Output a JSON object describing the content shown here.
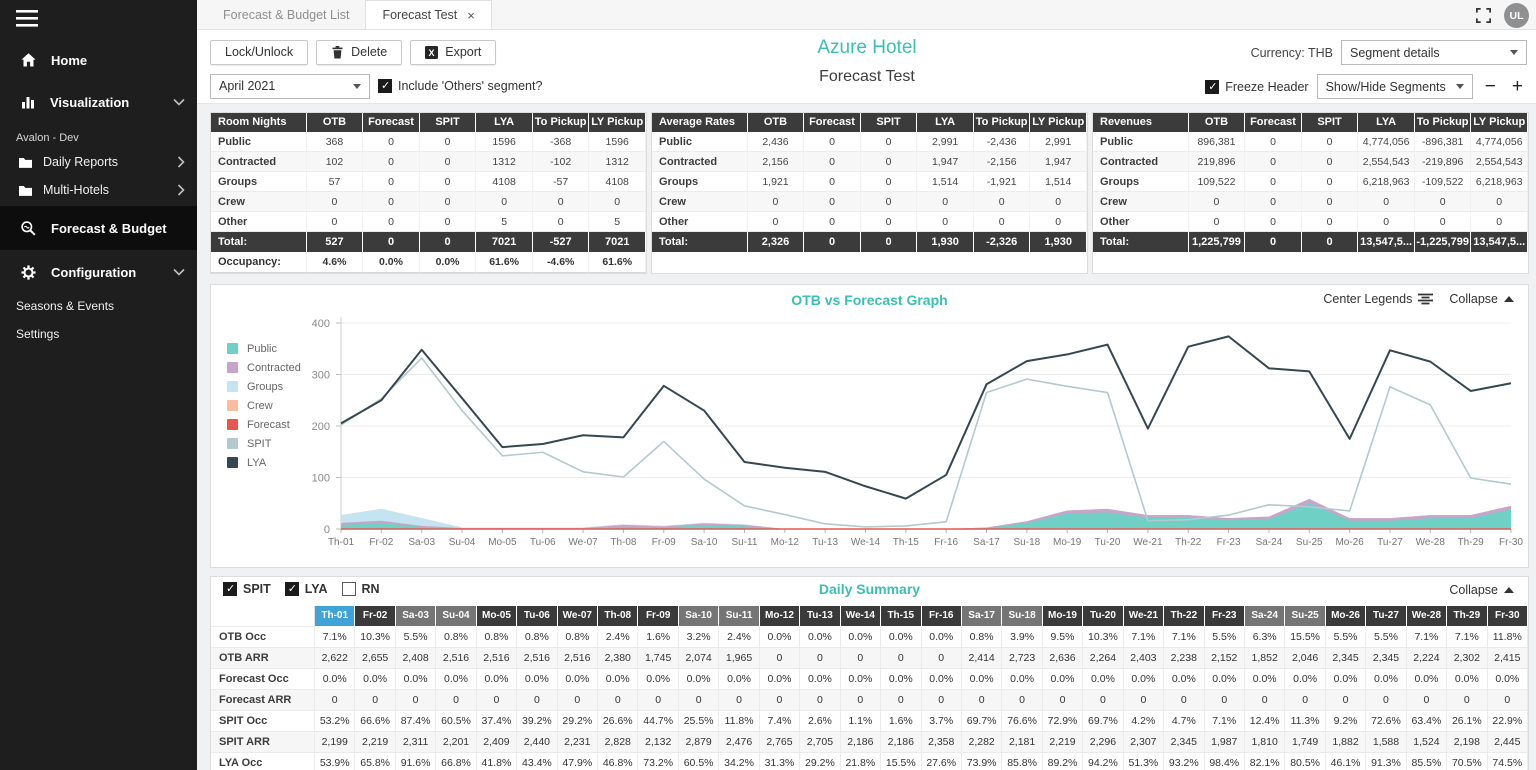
{
  "sidebar": {
    "items": [
      {
        "id": "home",
        "label": "Home",
        "icon": "home-icon",
        "type": "top"
      },
      {
        "id": "visualization",
        "label": "Visualization",
        "icon": "chart-icon",
        "type": "top",
        "chevron": "down"
      },
      {
        "id": "avalon-dev",
        "label": "Avalon - Dev",
        "type": "group-label"
      },
      {
        "id": "daily-reports",
        "label": "Daily Reports",
        "icon": "folder-icon",
        "type": "sub",
        "chevron": "right"
      },
      {
        "id": "multi-hotels",
        "label": "Multi-Hotels",
        "icon": "folder-icon",
        "type": "sub",
        "chevron": "right"
      },
      {
        "id": "forecast-budget",
        "label": "Forecast & Budget",
        "icon": "search-icon",
        "type": "top",
        "active": true
      },
      {
        "id": "configuration",
        "label": "Configuration",
        "icon": "gear-icon",
        "type": "top",
        "chevron": "down"
      },
      {
        "id": "seasons-events",
        "label": "Seasons & Events",
        "type": "link"
      },
      {
        "id": "settings",
        "label": "Settings",
        "type": "link"
      }
    ]
  },
  "tabs": {
    "items": [
      {
        "label": "Forecast & Budget List",
        "active": false
      },
      {
        "label": "Forecast Test",
        "active": true,
        "close": "×"
      }
    ],
    "avatar": "UL"
  },
  "toolbar": {
    "buttons": [
      {
        "id": "lock-unlock",
        "label": "Lock/Unlock"
      },
      {
        "id": "delete",
        "label": "Delete",
        "icon": "trash-icon"
      },
      {
        "id": "export",
        "label": "Export",
        "icon": "excel-icon"
      }
    ],
    "month": "April 2021",
    "include_others": "Include 'Others' segment?",
    "currency": "Currency: THB",
    "segment_details": "Segment details",
    "freeze_header": "Freeze Header",
    "show_hide_segments": "Show/Hide Segments",
    "zoom_out": "−",
    "zoom_in": "+"
  },
  "header": {
    "hotel": "Azure Hotel",
    "title": "Forecast Test"
  },
  "tables": [
    {
      "title": "Room Nights",
      "columns": [
        "OTB",
        "Forecast",
        "SPIT",
        "LYA",
        "To Pickup",
        "LY Pickup"
      ],
      "rows": [
        {
          "label": "Public",
          "values": [
            "368",
            "0",
            "0",
            "1596",
            "-368",
            "1596"
          ]
        },
        {
          "label": "Contracted",
          "values": [
            "102",
            "0",
            "0",
            "1312",
            "-102",
            "1312"
          ]
        },
        {
          "label": "Groups",
          "values": [
            "57",
            "0",
            "0",
            "4108",
            "-57",
            "4108"
          ]
        },
        {
          "label": "Crew",
          "values": [
            "0",
            "0",
            "0",
            "0",
            "0",
            "0"
          ]
        },
        {
          "label": "Other",
          "values": [
            "0",
            "0",
            "0",
            "5",
            "0",
            "5"
          ]
        }
      ],
      "total": {
        "label": "Total:",
        "values": [
          "527",
          "0",
          "0",
          "7021",
          "-527",
          "7021"
        ]
      },
      "footer": {
        "label": "Occupancy:",
        "values": [
          "4.6%",
          "0.0%",
          "0.0%",
          "61.6%",
          "-4.6%",
          "61.6%"
        ]
      }
    },
    {
      "title": "Average Rates",
      "columns": [
        "OTB",
        "Forecast",
        "SPIT",
        "LYA",
        "To Pickup",
        "LY Pickup"
      ],
      "rows": [
        {
          "label": "Public",
          "values": [
            "2,436",
            "0",
            "0",
            "2,991",
            "-2,436",
            "2,991"
          ]
        },
        {
          "label": "Contracted",
          "values": [
            "2,156",
            "0",
            "0",
            "1,947",
            "-2,156",
            "1,947"
          ]
        },
        {
          "label": "Groups",
          "values": [
            "1,921",
            "0",
            "0",
            "1,514",
            "-1,921",
            "1,514"
          ]
        },
        {
          "label": "Crew",
          "values": [
            "0",
            "0",
            "0",
            "0",
            "0",
            "0"
          ]
        },
        {
          "label": "Other",
          "values": [
            "0",
            "0",
            "0",
            "0",
            "0",
            "0"
          ]
        }
      ],
      "total": {
        "label": "Total:",
        "values": [
          "2,326",
          "0",
          "0",
          "1,930",
          "-2,326",
          "1,930"
        ]
      }
    },
    {
      "title": "Revenues",
      "columns": [
        "OTB",
        "Forecast",
        "SPIT",
        "LYA",
        "To Pickup",
        "LY Pickup"
      ],
      "rows": [
        {
          "label": "Public",
          "values": [
            "896,381",
            "0",
            "0",
            "4,774,056",
            "-896,381",
            "4,774,056"
          ]
        },
        {
          "label": "Contracted",
          "values": [
            "219,896",
            "0",
            "0",
            "2,554,543",
            "-219,896",
            "2,554,543"
          ]
        },
        {
          "label": "Groups",
          "values": [
            "109,522",
            "0",
            "0",
            "6,218,963",
            "-109,522",
            "6,218,963"
          ]
        },
        {
          "label": "Crew",
          "values": [
            "0",
            "0",
            "0",
            "0",
            "0",
            "0"
          ]
        },
        {
          "label": "Other",
          "values": [
            "0",
            "0",
            "0",
            "0",
            "0",
            "0"
          ]
        }
      ],
      "total": {
        "label": "Total:",
        "values": [
          "1,225,799",
          "0",
          "0",
          "13,547,5...",
          "-1,225,799",
          "13,547,5..."
        ]
      }
    }
  ],
  "chart": {
    "title": "OTB vs Forecast Graph",
    "center_legends_label": "Center Legends",
    "collapse_label": "Collapse"
  },
  "chart_data": {
    "type": "line",
    "note": "Public/Contracted/Groups/Crew are stacked areas; Forecast/SPIT/LYA are lines",
    "x": [
      "Th-01",
      "Fr-02",
      "Sa-03",
      "Su-04",
      "Mo-05",
      "Tu-06",
      "We-07",
      "Th-08",
      "Fr-09",
      "Sa-10",
      "Su-11",
      "Mo-12",
      "Tu-13",
      "We-14",
      "Th-15",
      "Fr-16",
      "Sa-17",
      "Su-18",
      "Mo-19",
      "Tu-20",
      "We-21",
      "Th-22",
      "Fr-23",
      "Sa-24",
      "Su-25",
      "Mo-26",
      "Tu-27",
      "We-28",
      "Th-29",
      "Fr-30"
    ],
    "ylim": [
      0,
      400
    ],
    "y_ticks": [
      400,
      300,
      200,
      100,
      0
    ],
    "legend_position": "left",
    "series": [
      {
        "name": "Public",
        "kind": "area",
        "color": "#6fd1c6",
        "values": [
          8,
          12,
          4,
          1,
          1,
          1,
          1,
          4,
          3,
          8,
          5,
          0,
          0,
          0,
          0,
          0,
          2,
          12,
          30,
          32,
          22,
          22,
          17,
          19,
          50,
          16,
          16,
          21,
          21,
          38
        ]
      },
      {
        "name": "Contracted",
        "kind": "area",
        "color": "#c9a4ca",
        "values": [
          4,
          4,
          2,
          1,
          1,
          1,
          1,
          4,
          2,
          3,
          3,
          0,
          0,
          0,
          0,
          0,
          1,
          3,
          6,
          7,
          5,
          5,
          4,
          5,
          8,
          5,
          5,
          6,
          6,
          7
        ]
      },
      {
        "name": "Groups",
        "kind": "area",
        "color": "#c3e4f0",
        "values": [
          15,
          23,
          15,
          1,
          1,
          1,
          1,
          1,
          1,
          1,
          1,
          0,
          0,
          0,
          0,
          0,
          0,
          0,
          0,
          0,
          0,
          0,
          0,
          0,
          1,
          0,
          0,
          0,
          0,
          0
        ]
      },
      {
        "name": "Crew",
        "kind": "area",
        "color": "#f9bd9e",
        "values": [
          0,
          0,
          0,
          0,
          0,
          0,
          0,
          0,
          0,
          0,
          0,
          0,
          0,
          0,
          0,
          0,
          0,
          0,
          0,
          0,
          0,
          0,
          0,
          0,
          0,
          0,
          0,
          0,
          0,
          0
        ]
      },
      {
        "name": "Forecast",
        "kind": "line",
        "color": "#e8564e",
        "values": [
          0,
          0,
          0,
          0,
          0,
          0,
          0,
          0,
          0,
          0,
          0,
          0,
          0,
          0,
          0,
          0,
          0,
          0,
          0,
          0,
          0,
          0,
          0,
          0,
          0,
          0,
          0,
          0,
          0,
          0
        ]
      },
      {
        "name": "SPIT",
        "kind": "line",
        "color": "#b4c9cb",
        "values": [
          202,
          253,
          332,
          230,
          142,
          149,
          111,
          101,
          170,
          97,
          45,
          28,
          10,
          4,
          6,
          14,
          265,
          291,
          277,
          265,
          16,
          18,
          27,
          47,
          43,
          35,
          276,
          241,
          99,
          87
        ]
      },
      {
        "name": "LYA",
        "kind": "line",
        "color": "#36474f",
        "values": [
          205,
          250,
          348,
          254,
          159,
          165,
          182,
          178,
          278,
          230,
          130,
          119,
          111,
          83,
          59,
          105,
          281,
          326,
          339,
          358,
          195,
          354,
          374,
          312,
          306,
          175,
          347,
          325,
          268,
          283
        ]
      }
    ]
  },
  "daily": {
    "checkboxes": [
      {
        "label": "SPIT",
        "checked": true
      },
      {
        "label": "LYA",
        "checked": true
      },
      {
        "label": "RN",
        "checked": false
      }
    ],
    "title": "Daily Summary",
    "collapse_label": "Collapse",
    "days": [
      {
        "label": "Th-01",
        "kind": "selected"
      },
      {
        "label": "Fr-02",
        "kind": "weekday"
      },
      {
        "label": "Sa-03",
        "kind": "weekend"
      },
      {
        "label": "Su-04",
        "kind": "weekend"
      },
      {
        "label": "Mo-05",
        "kind": "weekday"
      },
      {
        "label": "Tu-06",
        "kind": "weekday"
      },
      {
        "label": "We-07",
        "kind": "weekday"
      },
      {
        "label": "Th-08",
        "kind": "weekday"
      },
      {
        "label": "Fr-09",
        "kind": "weekday"
      },
      {
        "label": "Sa-10",
        "kind": "weekend"
      },
      {
        "label": "Su-11",
        "kind": "weekend"
      },
      {
        "label": "Mo-12",
        "kind": "weekday"
      },
      {
        "label": "Tu-13",
        "kind": "weekday"
      },
      {
        "label": "We-14",
        "kind": "weekday"
      },
      {
        "label": "Th-15",
        "kind": "weekday"
      },
      {
        "label": "Fr-16",
        "kind": "weekday"
      },
      {
        "label": "Sa-17",
        "kind": "weekend"
      },
      {
        "label": "Su-18",
        "kind": "weekend"
      },
      {
        "label": "Mo-19",
        "kind": "weekday"
      },
      {
        "label": "Tu-20",
        "kind": "weekday"
      },
      {
        "label": "We-21",
        "kind": "weekday"
      },
      {
        "label": "Th-22",
        "kind": "weekday"
      },
      {
        "label": "Fr-23",
        "kind": "weekday"
      },
      {
        "label": "Sa-24",
        "kind": "weekend"
      },
      {
        "label": "Su-25",
        "kind": "weekend"
      },
      {
        "label": "Mo-26",
        "kind": "weekday"
      },
      {
        "label": "Tu-27",
        "kind": "weekday"
      },
      {
        "label": "We-28",
        "kind": "weekday"
      },
      {
        "label": "Th-29",
        "kind": "weekday"
      },
      {
        "label": "Fr-30",
        "kind": "weekday"
      }
    ],
    "rows": [
      {
        "label": "OTB Occ",
        "values": [
          "7.1%",
          "10.3%",
          "5.5%",
          "0.8%",
          "0.8%",
          "0.8%",
          "0.8%",
          "2.4%",
          "1.6%",
          "3.2%",
          "2.4%",
          "0.0%",
          "0.0%",
          "0.0%",
          "0.0%",
          "0.0%",
          "0.8%",
          "3.9%",
          "9.5%",
          "10.3%",
          "7.1%",
          "7.1%",
          "5.5%",
          "6.3%",
          "15.5%",
          "5.5%",
          "5.5%",
          "7.1%",
          "7.1%",
          "11.8%"
        ]
      },
      {
        "label": "OTB ARR",
        "values": [
          "2,622",
          "2,655",
          "2,408",
          "2,516",
          "2,516",
          "2,516",
          "2,516",
          "2,380",
          "1,745",
          "2,074",
          "1,965",
          "0",
          "0",
          "0",
          "0",
          "0",
          "2,414",
          "2,723",
          "2,636",
          "2,264",
          "2,403",
          "2,238",
          "2,152",
          "1,852",
          "2,046",
          "2,345",
          "2,345",
          "2,224",
          "2,302",
          "2,415"
        ]
      },
      {
        "label": "Forecast Occ",
        "values": [
          "0.0%",
          "0.0%",
          "0.0%",
          "0.0%",
          "0.0%",
          "0.0%",
          "0.0%",
          "0.0%",
          "0.0%",
          "0.0%",
          "0.0%",
          "0.0%",
          "0.0%",
          "0.0%",
          "0.0%",
          "0.0%",
          "0.0%",
          "0.0%",
          "0.0%",
          "0.0%",
          "0.0%",
          "0.0%",
          "0.0%",
          "0.0%",
          "0.0%",
          "0.0%",
          "0.0%",
          "0.0%",
          "0.0%",
          "0.0%"
        ]
      },
      {
        "label": "Forecast ARR",
        "values": [
          "0",
          "0",
          "0",
          "0",
          "0",
          "0",
          "0",
          "0",
          "0",
          "0",
          "0",
          "0",
          "0",
          "0",
          "0",
          "0",
          "0",
          "0",
          "0",
          "0",
          "0",
          "0",
          "0",
          "0",
          "0",
          "0",
          "0",
          "0",
          "0",
          "0"
        ]
      },
      {
        "label": "SPIT Occ",
        "values": [
          "53.2%",
          "66.6%",
          "87.4%",
          "60.5%",
          "37.4%",
          "39.2%",
          "29.2%",
          "26.6%",
          "44.7%",
          "25.5%",
          "11.8%",
          "7.4%",
          "2.6%",
          "1.1%",
          "1.6%",
          "3.7%",
          "69.7%",
          "76.6%",
          "72.9%",
          "69.7%",
          "4.2%",
          "4.7%",
          "7.1%",
          "12.4%",
          "11.3%",
          "9.2%",
          "72.6%",
          "63.4%",
          "26.1%",
          "22.9%"
        ]
      },
      {
        "label": "SPIT ARR",
        "values": [
          "2,199",
          "2,219",
          "2,311",
          "2,201",
          "2,409",
          "2,440",
          "2,231",
          "2,828",
          "2,132",
          "2,879",
          "2,476",
          "2,765",
          "2,705",
          "2,186",
          "2,186",
          "2,358",
          "2,282",
          "2,181",
          "2,219",
          "2,296",
          "2,307",
          "2,345",
          "1,987",
          "1,810",
          "1,749",
          "1,882",
          "1,588",
          "1,524",
          "2,198",
          "2,445"
        ]
      },
      {
        "label": "LYA Occ",
        "values": [
          "53.9%",
          "65.8%",
          "91.6%",
          "66.8%",
          "41.8%",
          "43.4%",
          "47.9%",
          "46.8%",
          "73.2%",
          "60.5%",
          "34.2%",
          "31.3%",
          "29.2%",
          "21.8%",
          "15.5%",
          "27.6%",
          "73.9%",
          "85.8%",
          "89.2%",
          "94.2%",
          "51.3%",
          "93.2%",
          "98.4%",
          "82.1%",
          "80.5%",
          "46.1%",
          "91.3%",
          "85.5%",
          "70.5%",
          "74.5%"
        ]
      }
    ]
  }
}
